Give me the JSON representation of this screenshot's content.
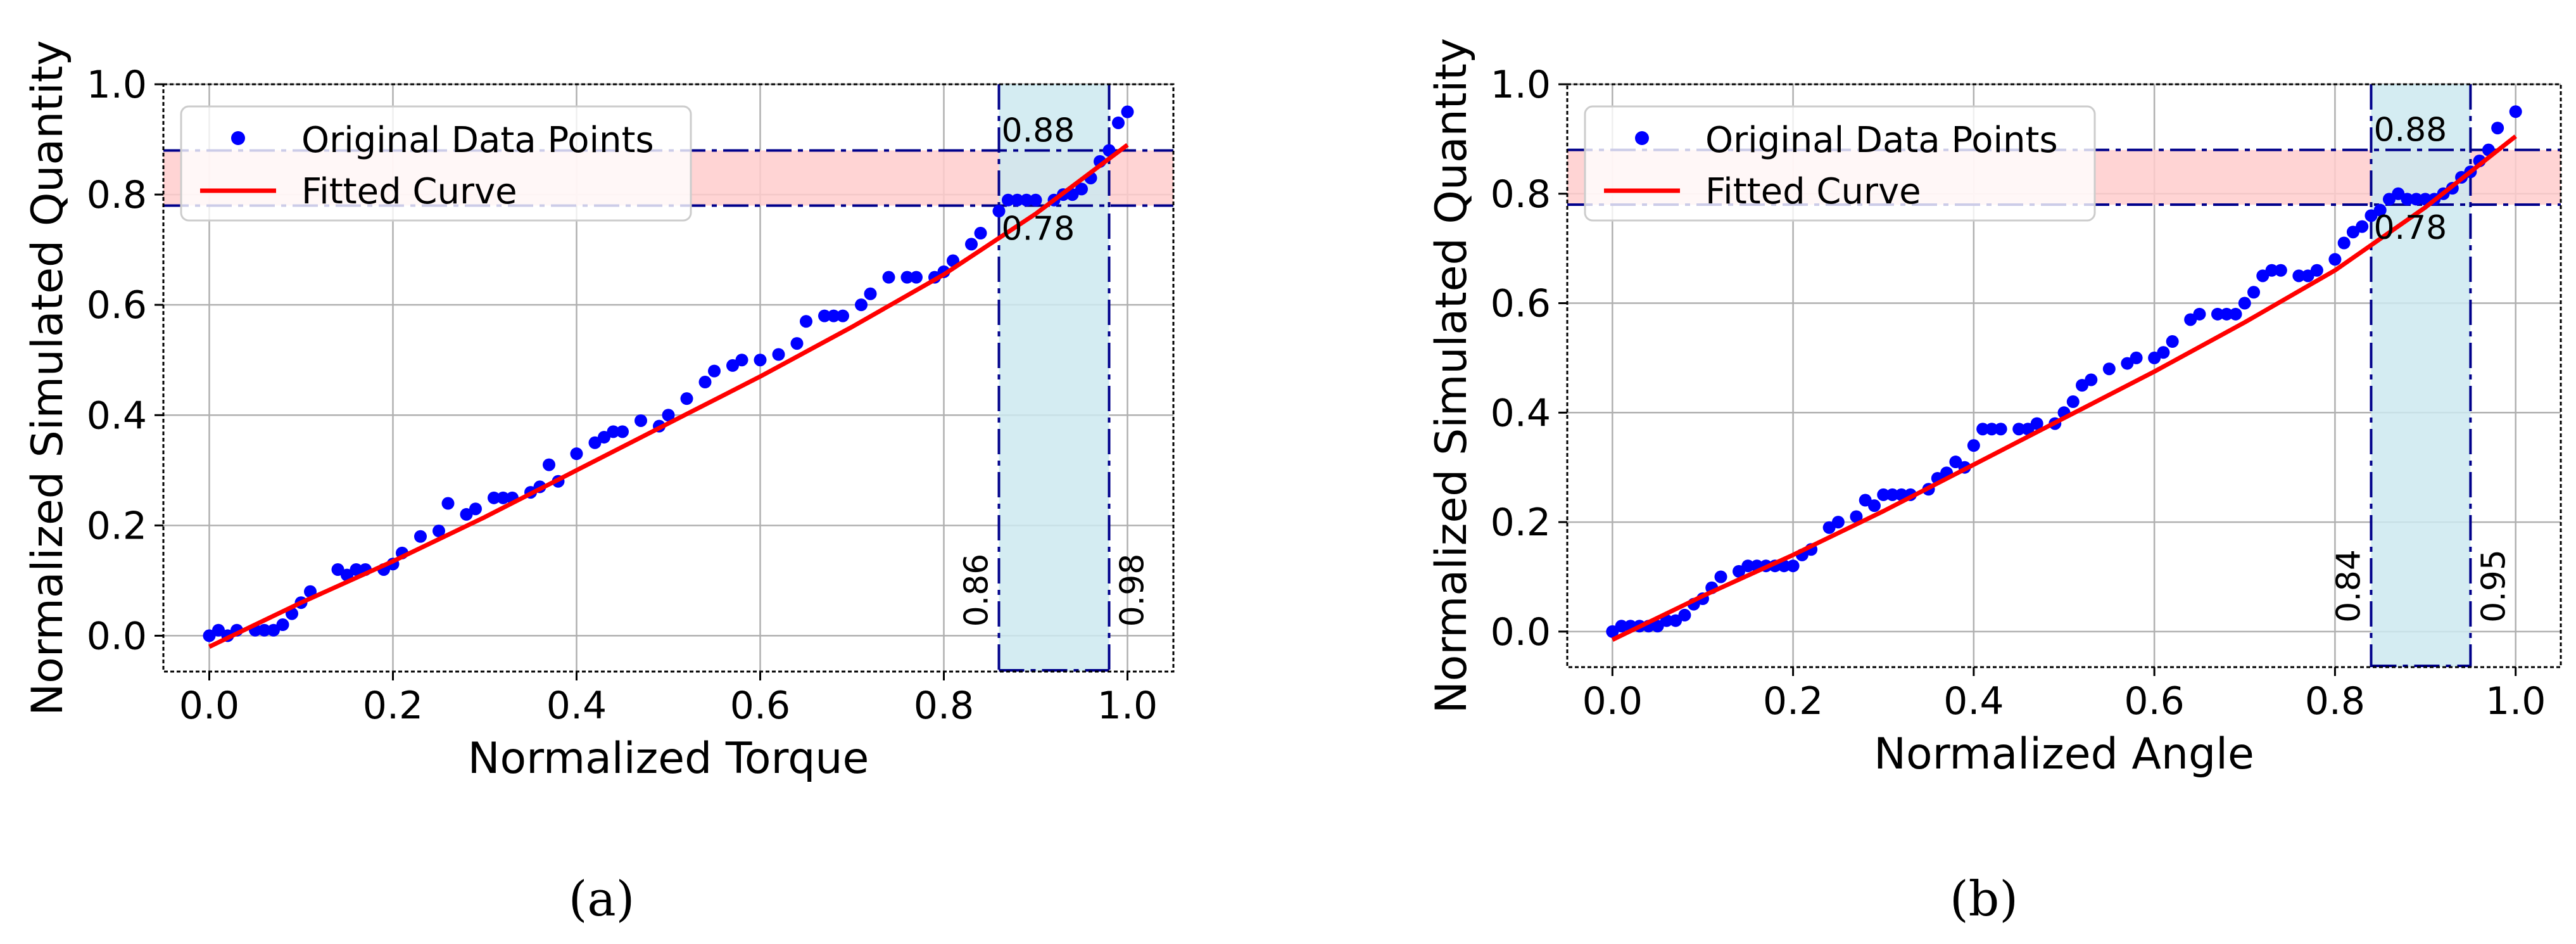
{
  "chart_data": [
    {
      "type": "scatter",
      "panel_label": "(a)",
      "xlabel": "Normalized Torque",
      "ylabel": "Normalized Simulated Quantity",
      "xlim": [
        -0.05,
        1.05
      ],
      "ylim": [
        -0.065,
        1.0
      ],
      "xticks": [
        "0.0",
        "0.2",
        "0.4",
        "0.6",
        "0.8",
        "1.0"
      ],
      "yticks": [
        "0.0",
        "0.2",
        "0.4",
        "0.6",
        "0.8",
        "1.0"
      ],
      "grid": true,
      "legend": {
        "position": "top-left",
        "entries": [
          "Original Data Points",
          "Fitted Curve"
        ]
      },
      "colors": {
        "points": "#0000ff",
        "curve": "#ff0000",
        "h_band": "#ffcccc",
        "v_band": "#cde9f0",
        "guide_lines": "#00008b"
      },
      "series": [
        {
          "name": "Original Data Points",
          "points": [
            [
              0.0,
              0.0
            ],
            [
              0.01,
              0.01
            ],
            [
              0.02,
              0.0
            ],
            [
              0.03,
              0.01
            ],
            [
              0.05,
              0.01
            ],
            [
              0.06,
              0.01
            ],
            [
              0.07,
              0.01
            ],
            [
              0.08,
              0.02
            ],
            [
              0.09,
              0.04
            ],
            [
              0.1,
              0.06
            ],
            [
              0.11,
              0.08
            ],
            [
              0.14,
              0.12
            ],
            [
              0.15,
              0.11
            ],
            [
              0.16,
              0.12
            ],
            [
              0.17,
              0.12
            ],
            [
              0.19,
              0.12
            ],
            [
              0.2,
              0.13
            ],
            [
              0.21,
              0.15
            ],
            [
              0.23,
              0.18
            ],
            [
              0.25,
              0.19
            ],
            [
              0.26,
              0.24
            ],
            [
              0.28,
              0.22
            ],
            [
              0.29,
              0.23
            ],
            [
              0.31,
              0.25
            ],
            [
              0.32,
              0.25
            ],
            [
              0.33,
              0.25
            ],
            [
              0.35,
              0.26
            ],
            [
              0.36,
              0.27
            ],
            [
              0.37,
              0.31
            ],
            [
              0.38,
              0.28
            ],
            [
              0.4,
              0.33
            ],
            [
              0.42,
              0.35
            ],
            [
              0.43,
              0.36
            ],
            [
              0.44,
              0.37
            ],
            [
              0.45,
              0.37
            ],
            [
              0.47,
              0.39
            ],
            [
              0.49,
              0.38
            ],
            [
              0.5,
              0.4
            ],
            [
              0.52,
              0.43
            ],
            [
              0.54,
              0.46
            ],
            [
              0.55,
              0.48
            ],
            [
              0.57,
              0.49
            ],
            [
              0.58,
              0.5
            ],
            [
              0.6,
              0.5
            ],
            [
              0.62,
              0.51
            ],
            [
              0.64,
              0.53
            ],
            [
              0.65,
              0.57
            ],
            [
              0.67,
              0.58
            ],
            [
              0.68,
              0.58
            ],
            [
              0.69,
              0.58
            ],
            [
              0.71,
              0.6
            ],
            [
              0.72,
              0.62
            ],
            [
              0.74,
              0.65
            ],
            [
              0.76,
              0.65
            ],
            [
              0.77,
              0.65
            ],
            [
              0.79,
              0.65
            ],
            [
              0.8,
              0.66
            ],
            [
              0.81,
              0.68
            ],
            [
              0.83,
              0.71
            ],
            [
              0.84,
              0.73
            ],
            [
              0.86,
              0.77
            ],
            [
              0.87,
              0.79
            ],
            [
              0.88,
              0.79
            ],
            [
              0.89,
              0.79
            ],
            [
              0.9,
              0.79
            ],
            [
              0.92,
              0.79
            ],
            [
              0.93,
              0.8
            ],
            [
              0.94,
              0.8
            ],
            [
              0.95,
              0.81
            ],
            [
              0.96,
              0.83
            ],
            [
              0.97,
              0.86
            ],
            [
              0.98,
              0.88
            ],
            [
              0.99,
              0.93
            ],
            [
              1.0,
              0.95
            ]
          ]
        },
        {
          "name": "Fitted Curve",
          "x": [
            0.0,
            0.1,
            0.2,
            0.3,
            0.4,
            0.5,
            0.6,
            0.7,
            0.8,
            0.9,
            1.0
          ],
          "y": [
            -0.02,
            0.06,
            0.135,
            0.215,
            0.3,
            0.385,
            0.47,
            0.56,
            0.655,
            0.765,
            0.89
          ]
        }
      ],
      "h_band": {
        "y_min": 0.78,
        "y_max": 0.88,
        "label_min": "0.78",
        "label_max": "0.88"
      },
      "v_band": {
        "x_min": 0.86,
        "x_max": 0.98,
        "label_min": "0.86",
        "label_max": "0.98"
      }
    },
    {
      "type": "scatter",
      "panel_label": "(b)",
      "xlabel": "Normalized Angle",
      "ylabel": "Normalized Simulated Quantity",
      "xlim": [
        -0.05,
        1.05
      ],
      "ylim": [
        -0.065,
        1.0
      ],
      "xticks": [
        "0.0",
        "0.2",
        "0.4",
        "0.6",
        "0.8",
        "1.0"
      ],
      "yticks": [
        "0.0",
        "0.2",
        "0.4",
        "0.6",
        "0.8",
        "1.0"
      ],
      "grid": true,
      "legend": {
        "position": "top-left",
        "entries": [
          "Original Data Points",
          "Fitted Curve"
        ]
      },
      "colors": {
        "points": "#0000ff",
        "curve": "#ff0000",
        "h_band": "#ffcccc",
        "v_band": "#cde9f0",
        "guide_lines": "#00008b"
      },
      "series": [
        {
          "name": "Original Data Points",
          "points": [
            [
              0.0,
              0.0
            ],
            [
              0.01,
              0.01
            ],
            [
              0.02,
              0.01
            ],
            [
              0.03,
              0.01
            ],
            [
              0.04,
              0.01
            ],
            [
              0.05,
              0.01
            ],
            [
              0.06,
              0.02
            ],
            [
              0.07,
              0.02
            ],
            [
              0.08,
              0.03
            ],
            [
              0.09,
              0.05
            ],
            [
              0.1,
              0.06
            ],
            [
              0.11,
              0.08
            ],
            [
              0.12,
              0.1
            ],
            [
              0.14,
              0.11
            ],
            [
              0.15,
              0.12
            ],
            [
              0.16,
              0.12
            ],
            [
              0.17,
              0.12
            ],
            [
              0.18,
              0.12
            ],
            [
              0.19,
              0.12
            ],
            [
              0.2,
              0.12
            ],
            [
              0.21,
              0.14
            ],
            [
              0.22,
              0.15
            ],
            [
              0.24,
              0.19
            ],
            [
              0.25,
              0.2
            ],
            [
              0.27,
              0.21
            ],
            [
              0.28,
              0.24
            ],
            [
              0.29,
              0.23
            ],
            [
              0.3,
              0.25
            ],
            [
              0.31,
              0.25
            ],
            [
              0.32,
              0.25
            ],
            [
              0.33,
              0.25
            ],
            [
              0.35,
              0.26
            ],
            [
              0.36,
              0.28
            ],
            [
              0.37,
              0.29
            ],
            [
              0.38,
              0.31
            ],
            [
              0.39,
              0.3
            ],
            [
              0.4,
              0.34
            ],
            [
              0.41,
              0.37
            ],
            [
              0.42,
              0.37
            ],
            [
              0.43,
              0.37
            ],
            [
              0.45,
              0.37
            ],
            [
              0.46,
              0.37
            ],
            [
              0.47,
              0.38
            ],
            [
              0.49,
              0.38
            ],
            [
              0.5,
              0.4
            ],
            [
              0.51,
              0.42
            ],
            [
              0.52,
              0.45
            ],
            [
              0.53,
              0.46
            ],
            [
              0.55,
              0.48
            ],
            [
              0.57,
              0.49
            ],
            [
              0.58,
              0.5
            ],
            [
              0.6,
              0.5
            ],
            [
              0.61,
              0.51
            ],
            [
              0.62,
              0.53
            ],
            [
              0.64,
              0.57
            ],
            [
              0.65,
              0.58
            ],
            [
              0.67,
              0.58
            ],
            [
              0.68,
              0.58
            ],
            [
              0.69,
              0.58
            ],
            [
              0.7,
              0.6
            ],
            [
              0.71,
              0.62
            ],
            [
              0.72,
              0.65
            ],
            [
              0.73,
              0.66
            ],
            [
              0.74,
              0.66
            ],
            [
              0.76,
              0.65
            ],
            [
              0.77,
              0.65
            ],
            [
              0.78,
              0.66
            ],
            [
              0.8,
              0.68
            ],
            [
              0.81,
              0.71
            ],
            [
              0.82,
              0.73
            ],
            [
              0.83,
              0.74
            ],
            [
              0.84,
              0.76
            ],
            [
              0.85,
              0.77
            ],
            [
              0.86,
              0.79
            ],
            [
              0.87,
              0.8
            ],
            [
              0.88,
              0.79
            ],
            [
              0.89,
              0.79
            ],
            [
              0.9,
              0.79
            ],
            [
              0.91,
              0.79
            ],
            [
              0.92,
              0.8
            ],
            [
              0.93,
              0.81
            ],
            [
              0.94,
              0.83
            ],
            [
              0.95,
              0.84
            ],
            [
              0.96,
              0.86
            ],
            [
              0.97,
              0.88
            ],
            [
              0.98,
              0.92
            ],
            [
              1.0,
              0.95
            ]
          ]
        },
        {
          "name": "Fitted Curve",
          "x": [
            0.0,
            0.1,
            0.2,
            0.3,
            0.4,
            0.5,
            0.6,
            0.7,
            0.8,
            0.9,
            1.0
          ],
          "y": [
            -0.015,
            0.065,
            0.14,
            0.22,
            0.305,
            0.39,
            0.475,
            0.565,
            0.66,
            0.775,
            0.905
          ]
        }
      ],
      "h_band": {
        "y_min": 0.78,
        "y_max": 0.88,
        "label_min": "0.78",
        "label_max": "0.88"
      },
      "v_band": {
        "x_min": 0.84,
        "x_max": 0.95,
        "label_min": "0.84",
        "label_max": "0.95"
      }
    }
  ]
}
